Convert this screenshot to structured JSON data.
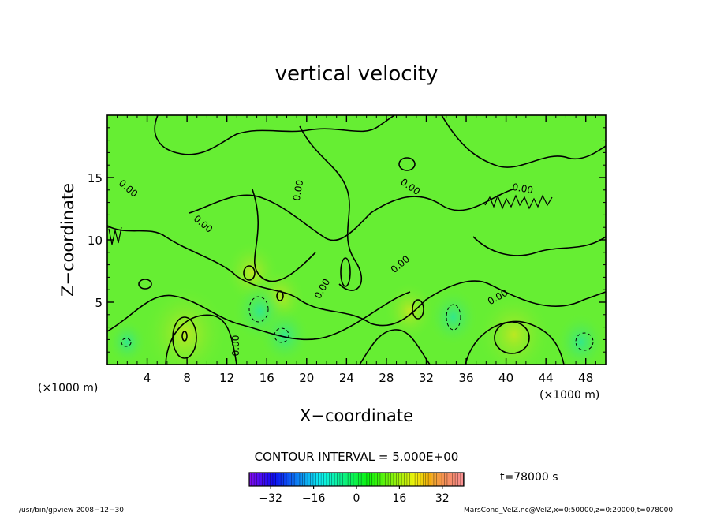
{
  "chart_data": {
    "type": "heatmap",
    "title": "vertical velocity",
    "xlabel": "X−coordinate",
    "ylabel": "Z−coordinate",
    "x_unit": "(×1000 m)",
    "xlim": [
      0,
      50
    ],
    "ylim": [
      0,
      20
    ],
    "x_ticks": [
      4,
      8,
      12,
      16,
      20,
      24,
      28,
      32,
      36,
      40,
      44,
      48
    ],
    "y_ticks": [
      5,
      10,
      15
    ],
    "contour_interval": "CONTOUR INTERVAL = 5.000E+00",
    "contour_labels": [
      "0.00",
      "0.00",
      "0.00",
      "0.00",
      "0.00",
      "0.00",
      "0.00",
      "0.00",
      "0.00"
    ],
    "colorbar": {
      "range": [
        -40,
        40
      ],
      "ticks": [
        -32,
        -16,
        0,
        16,
        32
      ],
      "colormap": "rainbow"
    },
    "annotation_time": "t=78000 s",
    "field_colors": {
      "background": "#66ee33",
      "warm": "#aaee22",
      "cool": "#33ee66"
    },
    "features": [
      {
        "kind": "updraft",
        "x": 7.8,
        "z": 2.5,
        "value": 15
      },
      {
        "kind": "updraft",
        "x": 40.8,
        "z": 2.4,
        "value": 12
      },
      {
        "kind": "updraft",
        "x": 14.5,
        "z": 7.4,
        "value": 7
      },
      {
        "kind": "updraft",
        "x": 30.3,
        "z": 4.3,
        "value": 6
      },
      {
        "kind": "updraft",
        "x": 17.3,
        "z": 5.4,
        "value": 6
      },
      {
        "kind": "downdraft",
        "x": 15.3,
        "z": 4.3,
        "value": -7
      },
      {
        "kind": "downdraft",
        "x": 17.8,
        "z": 2.3,
        "value": -6
      },
      {
        "kind": "downdraft",
        "x": 34.7,
        "z": 3.8,
        "value": -6
      },
      {
        "kind": "downdraft",
        "x": 47.5,
        "z": 1.8,
        "value": -6
      },
      {
        "kind": "downdraft",
        "x": 2.0,
        "z": 1.8,
        "value": -3
      }
    ]
  },
  "footer": {
    "left": "/usr/bin/gpview   2008−12−30",
    "right": "MarsCond_VelZ.nc@VelZ,x=0:50000,z=0:20000,t=078000"
  }
}
